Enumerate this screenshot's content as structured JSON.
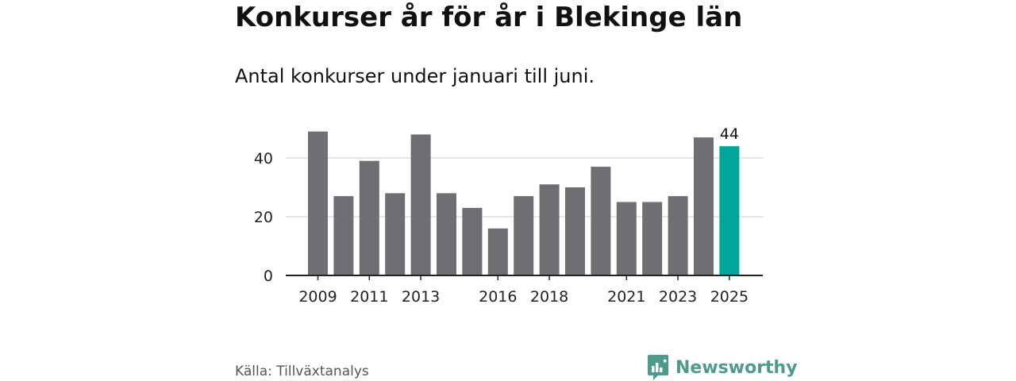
{
  "title": "Konkurser år för år i Blekinge län",
  "subtitle": "Antal konkurser under januari till juni.",
  "source": "Källa: Tillväxtanalys",
  "brand": {
    "name": "Newsworthy",
    "icon": "bar-chart-logo-icon"
  },
  "colors": {
    "bar": "#6f6e73",
    "highlight": "#00a69c",
    "grid": "#dddddd",
    "axis": "#222222",
    "brand": "#4e9a8d"
  },
  "chart_data": {
    "type": "bar",
    "categories": [
      "2009",
      "2010",
      "2011",
      "2012",
      "2013",
      "2014",
      "2015",
      "2016",
      "2017",
      "2018",
      "2019",
      "2020",
      "2021",
      "2022",
      "2023",
      "2024",
      "2025"
    ],
    "values": [
      49,
      27,
      39,
      28,
      48,
      28,
      23,
      16,
      27,
      31,
      30,
      37,
      25,
      25,
      27,
      47,
      44
    ],
    "tick_labels": [
      "2009",
      "2011",
      "2013",
      "2016",
      "2018",
      "2021",
      "2023",
      "2025"
    ],
    "y_ticks": [
      0,
      20,
      40
    ],
    "ylim": [
      0,
      50
    ],
    "grid": true,
    "highlight_category": "2025",
    "data_labels": [
      {
        "category": "2025",
        "label": "44"
      }
    ],
    "legend": "none",
    "xlabel": "",
    "ylabel": ""
  }
}
